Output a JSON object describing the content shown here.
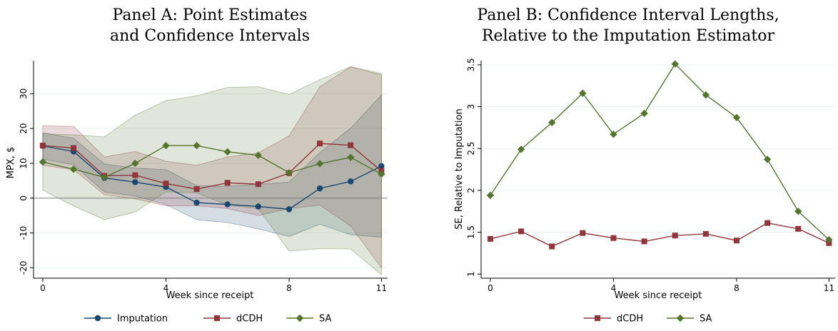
{
  "chart_data": [
    {
      "type": "line",
      "title_lines": [
        "Panel A: Point Estimates",
        "and Confidence Intervals"
      ],
      "xlabel": "Week since receipt",
      "ylabel": "MPX, $",
      "x": [
        0,
        1,
        2,
        3,
        4,
        5,
        6,
        7,
        8,
        9,
        10,
        11
      ],
      "xticks": [
        0,
        4,
        8,
        11
      ],
      "yticks": [
        -20,
        -10,
        0,
        10,
        20,
        30
      ],
      "xlim": [
        -0.3,
        11.2
      ],
      "ylim": [
        -23,
        39.5
      ],
      "reference_line": 0,
      "series": [
        {
          "name": "Imputation",
          "marker": "circle",
          "color": "#1a476f",
          "values": [
            15,
            13.4,
            5.8,
            4.6,
            3.2,
            -1.3,
            -1.8,
            -2.4,
            -3.2,
            2.8,
            4.8,
            9.2
          ],
          "ci_low": [
            11.2,
            9.6,
            1.8,
            0.6,
            -1.8,
            -6.2,
            -7.0,
            -8.8,
            -11.0,
            -7.5,
            -10.5,
            -11.2
          ],
          "ci_high": [
            18.8,
            17.2,
            9.8,
            8.6,
            8.2,
            3.6,
            3.4,
            4.0,
            4.6,
            13.1,
            20.1,
            29.6
          ],
          "band_color": "#1a476f"
        },
        {
          "name": "dCDH",
          "marker": "square",
          "color": "#90353b",
          "values": [
            15.1,
            14.4,
            6.4,
            6.6,
            4.2,
            2.6,
            4.4,
            4.0,
            7.2,
            15.7,
            15.2,
            7.8
          ],
          "ci_low": [
            9.4,
            8.2,
            1.0,
            -0.2,
            -2.2,
            -2.2,
            -3.0,
            -5.0,
            -3.0,
            -2.0,
            -8.0,
            -20.0
          ],
          "ci_high": [
            20.8,
            20.6,
            11.8,
            13.4,
            10.6,
            9.4,
            11.8,
            13.0,
            17.9,
            32.0,
            37.7,
            35.4
          ],
          "band_color": "#90353b"
        },
        {
          "name": "SA",
          "marker": "diamond",
          "color": "#55752f",
          "values": [
            10.4,
            8.3,
            6.0,
            10.0,
            15.1,
            15.1,
            13.3,
            12.3,
            7.3,
            9.9,
            11.7,
            6.9
          ],
          "ci_low": [
            2.3,
            -2.2,
            -6.2,
            -4.0,
            1.8,
            1.5,
            -2.0,
            -3.0,
            -15.2,
            -14.5,
            -14.6,
            -22.0
          ],
          "ci_high": [
            18.5,
            18.2,
            17.6,
            23.8,
            28.0,
            29.4,
            31.8,
            32.0,
            29.8,
            34.0,
            37.8,
            35.8
          ],
          "band_color": "#55752f"
        }
      ],
      "legend_position": "bottom",
      "grid": true
    },
    {
      "type": "line",
      "title_lines": [
        "Panel B: Confidence Interval Lengths,",
        "Relative to the Imputation Estimator"
      ],
      "xlabel": "Week since receipt",
      "ylabel": "SE, Relative to Imputation",
      "x": [
        0,
        1,
        2,
        3,
        4,
        5,
        6,
        7,
        8,
        9,
        10,
        11
      ],
      "xticks": [
        0,
        4,
        8,
        11
      ],
      "yticks": [
        1,
        1.5,
        2,
        2.5,
        3,
        3.5
      ],
      "xlim": [
        -0.3,
        11.2
      ],
      "ylim": [
        0.95,
        3.55
      ],
      "series": [
        {
          "name": "dCDH",
          "marker": "square",
          "color": "#90353b",
          "values": [
            1.42,
            1.51,
            1.33,
            1.49,
            1.43,
            1.39,
            1.46,
            1.48,
            1.4,
            1.61,
            1.54,
            1.37
          ]
        },
        {
          "name": "SA",
          "marker": "diamond",
          "color": "#55752f",
          "values": [
            1.94,
            2.49,
            2.81,
            3.16,
            2.67,
            2.92,
            3.51,
            3.14,
            2.87,
            2.37,
            1.75,
            1.41
          ]
        }
      ],
      "legend_position": "bottom",
      "grid": true
    }
  ]
}
